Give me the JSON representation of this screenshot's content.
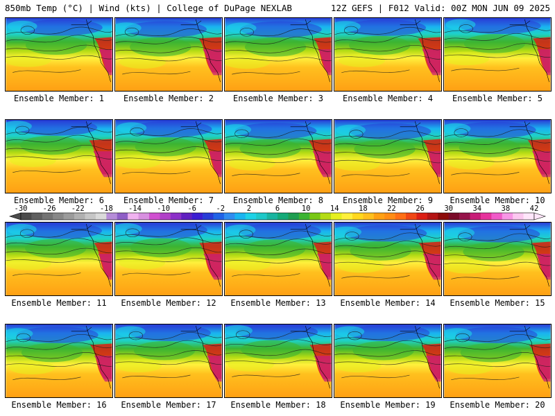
{
  "header": {
    "left": "850mb Temp (°C) | Wind (kts) | College of DuPage NEXLAB",
    "right": "12Z GEFS | F012 Valid: 00Z MON JUN 09 2025"
  },
  "panels": [
    {
      "label": "Ensemble Member: 1"
    },
    {
      "label": "Ensemble Member: 2"
    },
    {
      "label": "Ensemble Member: 3"
    },
    {
      "label": "Ensemble Member: 4"
    },
    {
      "label": "Ensemble Member: 5"
    },
    {
      "label": "Ensemble Member: 6"
    },
    {
      "label": "Ensemble Member: 7"
    },
    {
      "label": "Ensemble Member: 8"
    },
    {
      "label": "Ensemble Member: 9"
    },
    {
      "label": "Ensemble Member: 10"
    },
    {
      "label": "Ensemble Member: 11"
    },
    {
      "label": "Ensemble Member: 12"
    },
    {
      "label": "Ensemble Member: 13"
    },
    {
      "label": "Ensemble Member: 14"
    },
    {
      "label": "Ensemble Member: 15"
    },
    {
      "label": "Ensemble Member: 16"
    },
    {
      "label": "Ensemble Member: 17"
    },
    {
      "label": "Ensemble Member: 18"
    },
    {
      "label": "Ensemble Member: 19"
    },
    {
      "label": "Ensemble Member: 20"
    }
  ],
  "colorbar": {
    "ticks": [
      "-30",
      "-26",
      "-22",
      "-18",
      "-14",
      "-10",
      "-6",
      "-2",
      "2",
      "6",
      "10",
      "14",
      "18",
      "22",
      "26",
      "30",
      "34",
      "38",
      "42"
    ],
    "colors": [
      "#4b4b4b",
      "#5f5f5f",
      "#737373",
      "#878787",
      "#9b9b9b",
      "#b0b0b0",
      "#c6c6c6",
      "#dadada",
      "#b58cd8",
      "#8f5ec6",
      "#f0b2f0",
      "#d890e0",
      "#d050d0",
      "#b040c8",
      "#8c30c8",
      "#6020c0",
      "#3c1ed2",
      "#283cd7",
      "#2062e6",
      "#2f8cf0",
      "#1ab4f0",
      "#1ed2e6",
      "#1ec8c8",
      "#19b4a0",
      "#14aa78",
      "#1e9e50",
      "#3cb432",
      "#78c814",
      "#b4dc14",
      "#e6f01e",
      "#fff03c",
      "#ffd81e",
      "#ffc01e",
      "#ffa014",
      "#ff8c14",
      "#ff6e14",
      "#f04614",
      "#dc1e14",
      "#b41414",
      "#8c0a0a",
      "#7a0a28",
      "#96144a",
      "#c81e78",
      "#e6329c",
      "#f05ac8",
      "#f896e6",
      "#fcc8f0",
      "#ffe6fa"
    ]
  }
}
